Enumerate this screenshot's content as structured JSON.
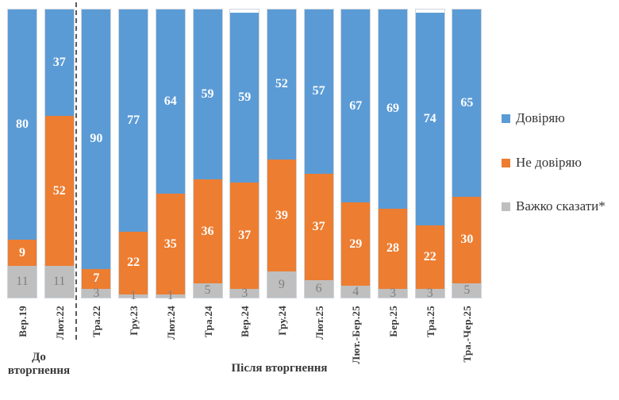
{
  "chart_data": {
    "type": "bar",
    "stacked": true,
    "unit": "%",
    "title": "",
    "xlabel": "",
    "ylabel": "",
    "ylim": [
      0,
      100
    ],
    "grid": false,
    "legend_position": "right",
    "value_labels": true,
    "categories": [
      "Вер.19",
      "Лют.22",
      "Тра.22",
      "Гру.23",
      "Лют.24",
      "Тра.24",
      "Вер.24",
      "Гру.24",
      "Лют.25",
      "Лют.-Бер.25",
      "Бер.25",
      "Тра.25",
      "Тра.-Чер.25"
    ],
    "series": [
      {
        "name": "Довіряю",
        "color": "#5B9BD5",
        "values": [
          80,
          37,
          90,
          77,
          64,
          59,
          59,
          52,
          57,
          67,
          69,
          74,
          65
        ]
      },
      {
        "name": "Не довіряю",
        "color": "#ED7D31",
        "values": [
          9,
          52,
          7,
          22,
          35,
          36,
          37,
          39,
          37,
          29,
          28,
          22,
          30
        ]
      },
      {
        "name": "Важко сказати*",
        "color": "#BFBFBF",
        "values": [
          11,
          11,
          3,
          1,
          1,
          5,
          3,
          9,
          6,
          4,
          3,
          3,
          5
        ]
      }
    ],
    "groups": [
      {
        "label": "До вторгнення",
        "from": "Вер.19",
        "to": "Лют.22"
      },
      {
        "label": "Після вторгнення",
        "from": "Тра.22",
        "to": "Тра.-Чер.25"
      }
    ],
    "divider": {
      "after_category": "Лют.22",
      "style": "dashed"
    }
  },
  "colors": {
    "background": "#FFFFFF",
    "value_label": "#FFFFFF",
    "muted_value_label": "#7F7F7F",
    "axis_label": "#383838",
    "divider": "#595959"
  }
}
